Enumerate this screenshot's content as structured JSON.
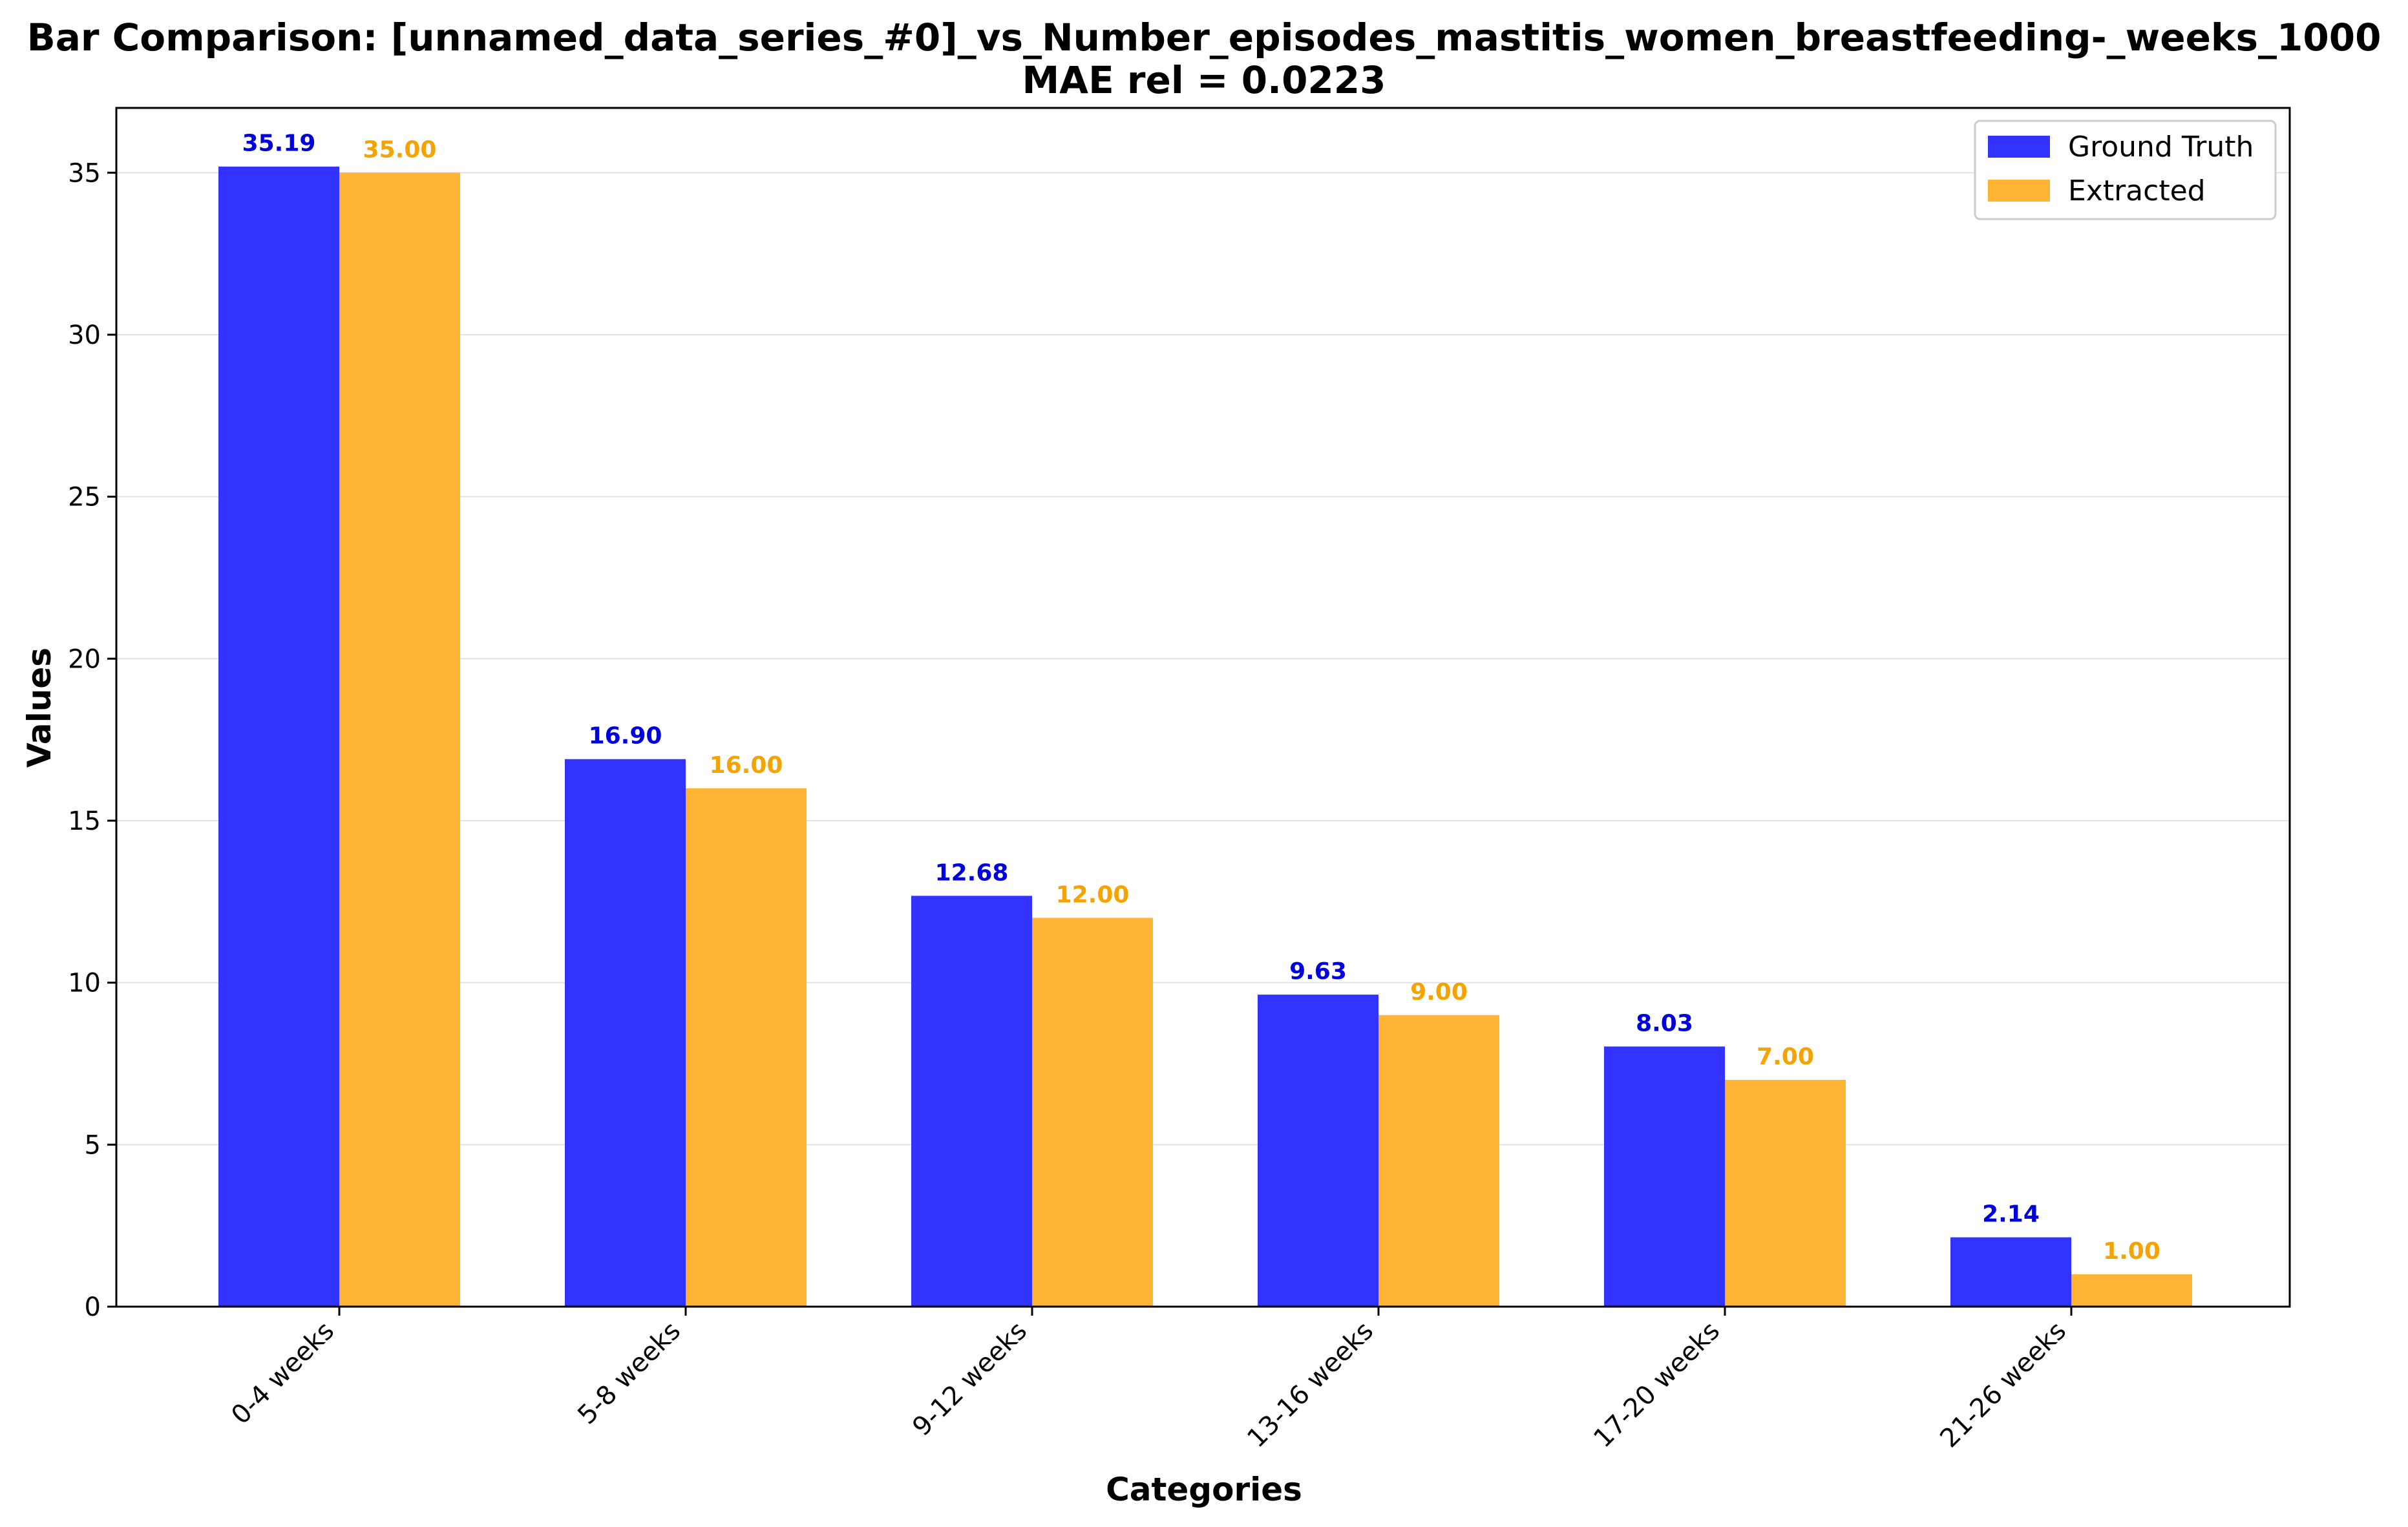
{
  "chart_data": {
    "type": "bar",
    "title": "Bar Comparison: [unnamed_data_series_#0]_vs_Number_episodes_mastitis_women_breastfeeding-_weeks_1000",
    "subtitle": "MAE rel = 0.0223",
    "xlabel": "Categories",
    "ylabel": "Values",
    "categories": [
      "0-4 weeks",
      "5-8 weeks",
      "9-12 weeks",
      "13-16 weeks",
      "17-20 weeks",
      "21-26 weeks"
    ],
    "series": [
      {
        "name": "Ground Truth",
        "color": "#3333ff",
        "label_color": "#0000dd",
        "values": [
          35.19,
          16.9,
          12.68,
          9.63,
          8.03,
          2.14
        ],
        "labels": [
          "35.19",
          "16.90",
          "12.68",
          "9.63",
          "8.03",
          "2.14"
        ]
      },
      {
        "name": "Extracted",
        "color": "#ffb433",
        "label_color": "#f5a300",
        "values": [
          35.0,
          16.0,
          12.0,
          9.0,
          7.0,
          1.0
        ],
        "labels": [
          "35.00",
          "16.00",
          "12.00",
          "9.00",
          "7.00",
          "1.00"
        ]
      }
    ],
    "ylim": [
      0,
      37
    ],
    "yticks": [
      0,
      5,
      10,
      15,
      20,
      25,
      30,
      35
    ],
    "ytick_labels": [
      "0",
      "5",
      "10",
      "15",
      "20",
      "25",
      "30",
      "35"
    ],
    "grid": true,
    "legend_position": "top-right"
  }
}
